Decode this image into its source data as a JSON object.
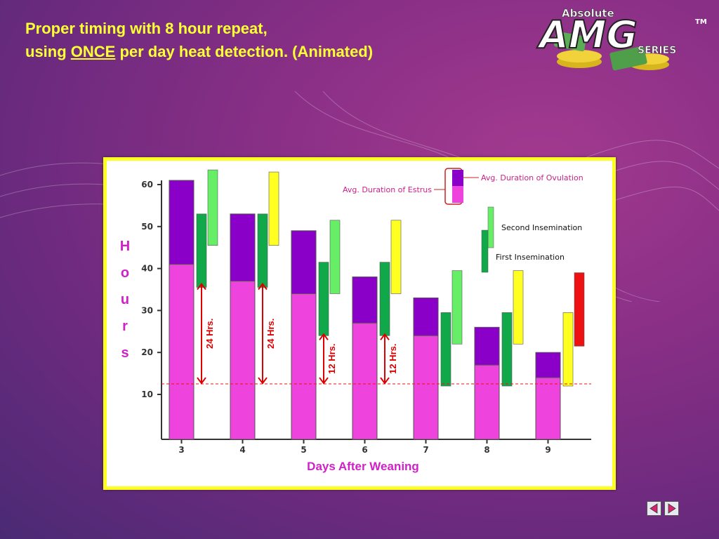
{
  "slide": {
    "title_line1": "Proper timing with 8 hour repeat,",
    "title_line2_pre": "using ",
    "title_line2_emph": "ONCE",
    "title_line2_post": " per day heat detection. (Animated)"
  },
  "logo": {
    "word_top": "Absolute",
    "word_main": "AMG",
    "word_sub": "SERIES",
    "trademark": "TM"
  },
  "chart_data": {
    "type": "bar",
    "xlabel": "Days After Weaning",
    "ylabel": "Hours",
    "ylim": [
      0,
      60
    ],
    "yticks": [
      10,
      20,
      30,
      40,
      50,
      60
    ],
    "categories": [
      "3",
      "4",
      "5",
      "6",
      "7",
      "8",
      "9"
    ],
    "series": [
      {
        "name": "Avg. Duration of Estrus",
        "values": [
          41,
          37,
          34,
          27,
          24,
          17,
          14
        ],
        "color": "#ee44dd"
      },
      {
        "name": "Avg. Duration of Ovulation",
        "values": [
          61,
          53,
          49,
          38,
          33,
          26,
          20
        ],
        "color": "#8a00c8"
      }
    ],
    "inseminations": [
      {
        "day": "3",
        "first": [
          35.5,
          53
        ],
        "second": [
          45.5,
          63.5
        ],
        "second_color": "#66ee66"
      },
      {
        "day": "4",
        "first": [
          35.5,
          53
        ],
        "second": [
          45.5,
          63
        ],
        "second_color": "#ffff22"
      },
      {
        "day": "5",
        "first": [
          24,
          41.5
        ],
        "second": [
          34,
          51.5
        ],
        "second_color": "#66ee66"
      },
      {
        "day": "6",
        "first": [
          24,
          41.5
        ],
        "second": [
          34,
          51.5
        ],
        "second_color": "#ffff22"
      },
      {
        "day": "7",
        "first": [
          12,
          29.5
        ],
        "second": [
          22,
          39.5
        ],
        "second_color": "#66ee66"
      },
      {
        "day": "8",
        "first": [
          12,
          29.5
        ],
        "second": [
          22,
          39.5
        ],
        "second_color": "#ffff22"
      },
      {
        "day": "9",
        "first": [
          12,
          29.5
        ],
        "second": [
          21.5,
          39
        ],
        "first_color": "#ffff22",
        "second_color": "#ee1111"
      }
    ],
    "reference_line_y": 12.5,
    "annotations": [
      {
        "text": "24 Hrs.",
        "day": "3",
        "from": 12.5,
        "to": 36.5
      },
      {
        "text": "24 Hrs.",
        "day": "4",
        "from": 12.5,
        "to": 36.5
      },
      {
        "text": "12 Hrs.",
        "day": "5",
        "from": 12.5,
        "to": 24.5
      },
      {
        "text": "12 Hrs.",
        "day": "6",
        "from": 12.5,
        "to": 24.5
      }
    ],
    "legend": {
      "ovulation": "Avg. Duration of Ovulation",
      "estrus": "Avg. Duration of Estrus",
      "second": "Second Insemination",
      "first": "First Insemination",
      "placement": "top-right"
    },
    "colors": {
      "estrus": "#ee44dd",
      "ovulation": "#8a00c8",
      "first_insemination": "#11a84a",
      "reference_line": "#ee1111",
      "arrow": "#dd0000",
      "xlabel": "#d020c8",
      "ylabel": "#d020c8"
    }
  }
}
